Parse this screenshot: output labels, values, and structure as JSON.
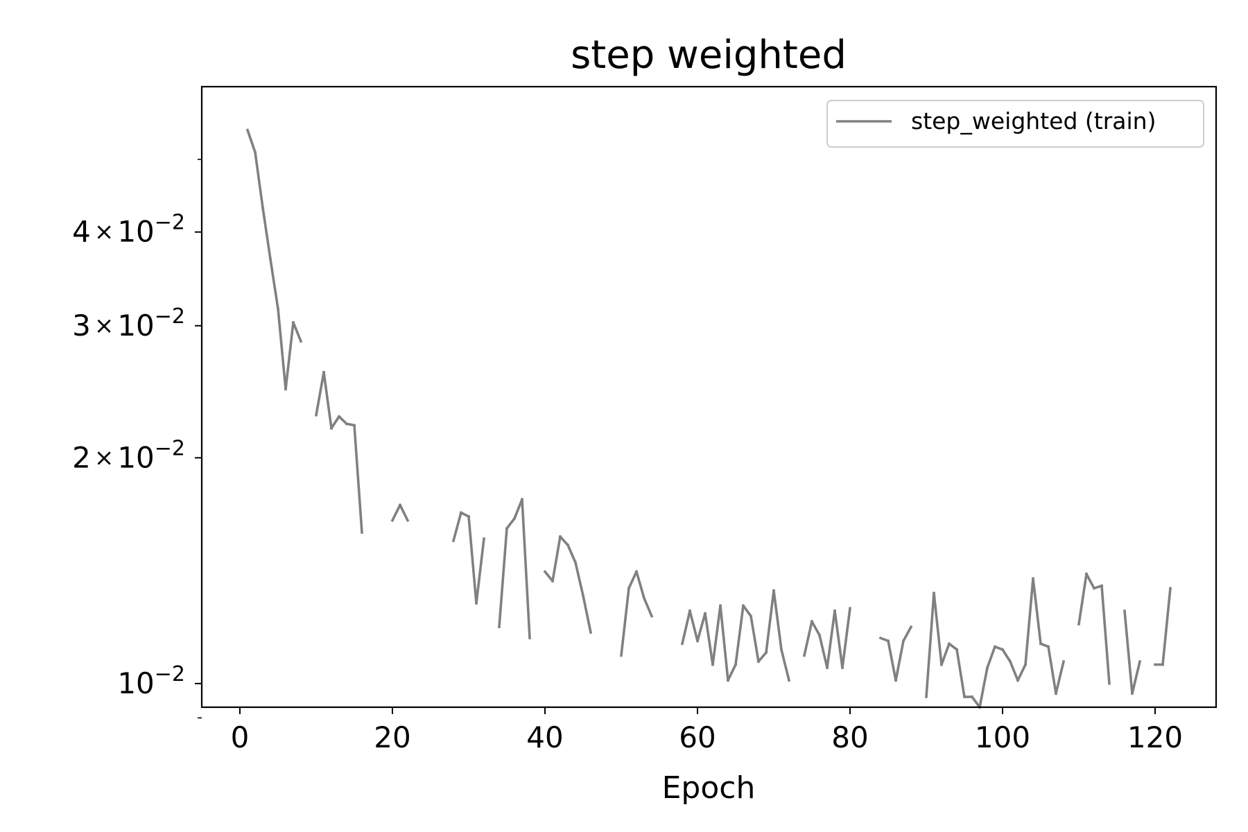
{
  "chart_data": {
    "type": "line",
    "title": "step weighted",
    "xlabel": "Epoch",
    "ylabel": "",
    "xlim": [
      -5,
      128
    ],
    "ylim": [
      0.0093,
      0.0625
    ],
    "yscale": "log",
    "grid": false,
    "legend_position": "top-right",
    "x_ticks": [
      {
        "value": 0,
        "label": "0"
      },
      {
        "value": 20,
        "label": "20"
      },
      {
        "value": 40,
        "label": "40"
      },
      {
        "value": 60,
        "label": "60"
      },
      {
        "value": 80,
        "label": "80"
      },
      {
        "value": 100,
        "label": "100"
      },
      {
        "value": 120,
        "label": "120"
      }
    ],
    "y_major_ticks": [
      {
        "value": 0.01,
        "base": "10",
        "exp": "−2",
        "mult": ""
      },
      {
        "value": 0.02,
        "base": "10",
        "exp": "−2",
        "mult": "2"
      },
      {
        "value": 0.03,
        "base": "10",
        "exp": "−2",
        "mult": "3"
      },
      {
        "value": 0.04,
        "base": "10",
        "exp": "−2",
        "mult": "4"
      }
    ],
    "y_minor_ticks": [
      0.009,
      0.05
    ],
    "series": [
      {
        "name": "step_weighted (train)",
        "color": "#808080",
        "x": [
          1,
          2,
          3,
          4,
          5,
          6,
          7,
          8,
          9,
          10,
          11,
          12,
          13,
          14,
          15,
          16,
          17,
          18,
          19,
          20,
          21,
          22,
          23,
          24,
          25,
          26,
          27,
          28,
          29,
          30,
          31,
          32,
          33,
          34,
          35,
          36,
          37,
          38,
          39,
          40,
          41,
          42,
          43,
          44,
          45,
          46,
          47,
          48,
          49,
          50,
          51,
          52,
          53,
          54,
          55,
          56,
          57,
          58,
          59,
          60,
          61,
          62,
          63,
          64,
          65,
          66,
          67,
          68,
          69,
          70,
          71,
          72,
          73,
          74,
          75,
          76,
          77,
          78,
          79,
          80,
          81,
          82,
          83,
          84,
          85,
          86,
          87,
          88,
          89,
          90,
          91,
          92,
          93,
          94,
          95,
          96,
          97,
          98,
          99,
          100,
          101,
          102,
          103,
          104,
          105,
          106,
          107,
          108,
          109,
          110,
          111,
          112,
          113,
          114,
          115,
          116,
          117,
          118,
          119,
          120,
          121,
          122
        ],
        "y": [
          0.0547,
          0.0511,
          0.0431,
          0.0368,
          0.0316,
          0.0247,
          0.0303,
          0.0286,
          null,
          0.0228,
          0.026,
          0.0219,
          0.0227,
          0.0222,
          0.0221,
          0.0159,
          null,
          null,
          null,
          0.0165,
          0.0173,
          0.0165,
          null,
          null,
          null,
          null,
          null,
          0.0155,
          0.0169,
          0.0167,
          0.0128,
          0.0156,
          null,
          0.0119,
          0.0161,
          0.0166,
          0.0176,
          0.0115,
          null,
          0.0141,
          0.0137,
          0.0157,
          0.0153,
          0.0145,
          0.0131,
          0.0117,
          null,
          null,
          null,
          0.0109,
          0.0134,
          0.0141,
          0.013,
          0.0123,
          null,
          null,
          null,
          0.0113,
          0.0125,
          0.0114,
          0.0124,
          0.0106,
          0.0127,
          0.0101,
          0.0106,
          0.0127,
          0.0123,
          0.0107,
          0.011,
          0.0133,
          0.0111,
          0.0101,
          null,
          0.0109,
          0.0121,
          0.0116,
          0.0105,
          0.0125,
          0.0105,
          0.0126,
          null,
          null,
          null,
          0.0115,
          0.0114,
          0.0101,
          0.0114,
          0.0119,
          null,
          0.0096,
          0.0132,
          0.0106,
          0.0113,
          0.0111,
          0.0096,
          0.0096,
          0.0093,
          0.0105,
          0.0112,
          0.0111,
          0.0107,
          0.0101,
          0.0106,
          0.0138,
          0.0113,
          0.0112,
          0.0097,
          0.0107,
          null,
          0.012,
          0.014,
          0.0134,
          0.0135,
          0.01,
          null,
          0.0125,
          0.0097,
          0.0107,
          null,
          0.0106,
          0.0106,
          0.0134
        ]
      }
    ]
  }
}
